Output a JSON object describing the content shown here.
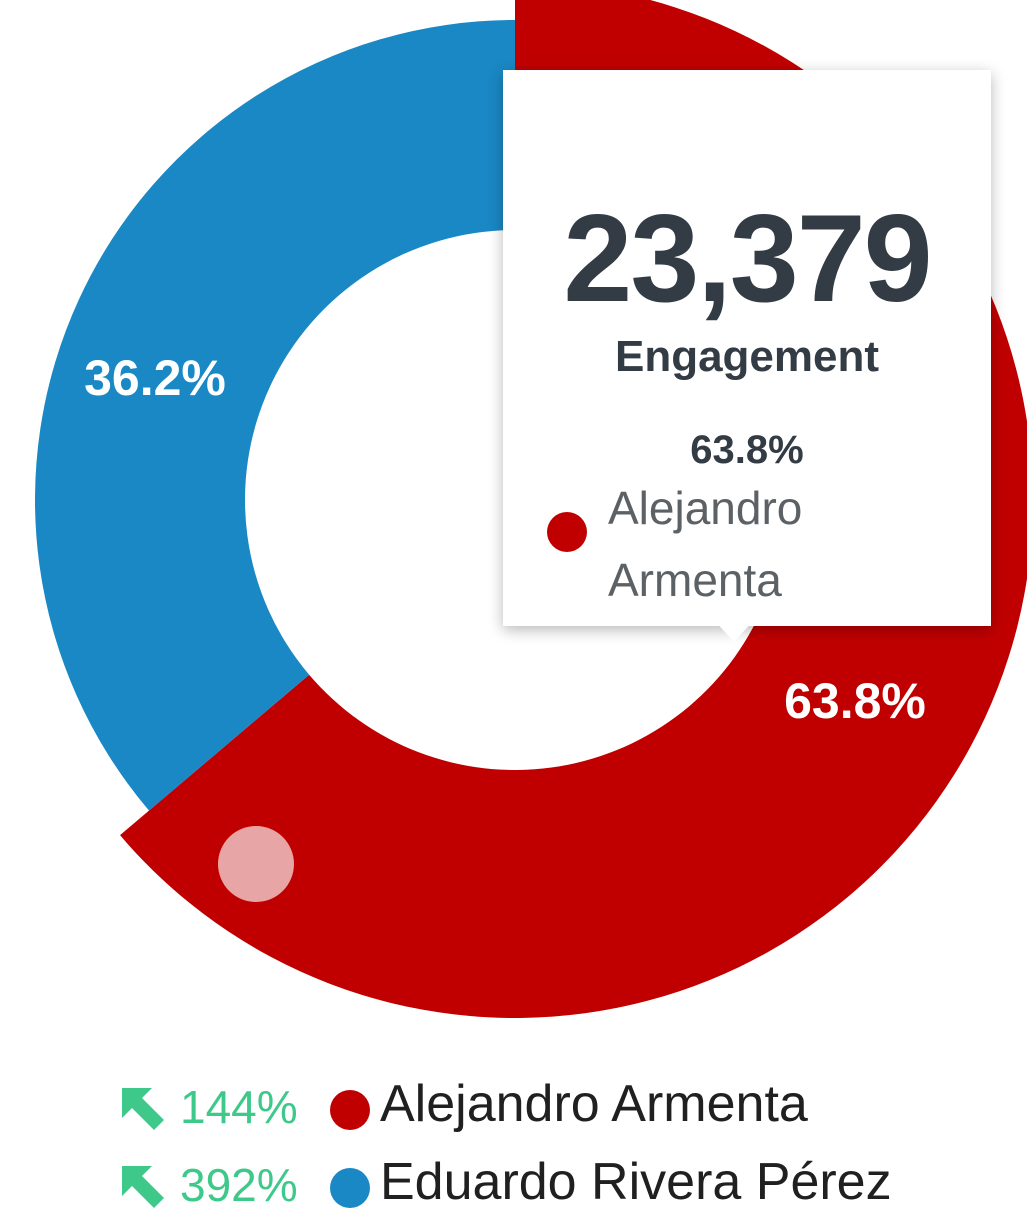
{
  "chart_data": {
    "type": "pie",
    "donut": true,
    "categories": [
      "Alejandro Armenta",
      "Eduardo Rivera Pérez"
    ],
    "values": [
      63.8,
      36.2
    ],
    "labels": [
      "63.8%",
      "36.2%"
    ],
    "colors": [
      "#c00000",
      "#1a88c4"
    ],
    "highlighted_index": 0,
    "tooltip": {
      "value": "23,379",
      "metric": "Engagement",
      "percent": "63.8%",
      "name": "Alejandro Armenta"
    },
    "legend": [
      {
        "trend": "144%",
        "trend_direction": "up",
        "name": "Alejandro Armenta",
        "color": "#c00000"
      },
      {
        "trend": "392%",
        "trend_direction": "up",
        "name": "Eduardo Rivera Pérez",
        "color": "#1a88c4"
      }
    ],
    "trend_color": "#3ec98b",
    "marker_color": "#e8a5a5"
  }
}
